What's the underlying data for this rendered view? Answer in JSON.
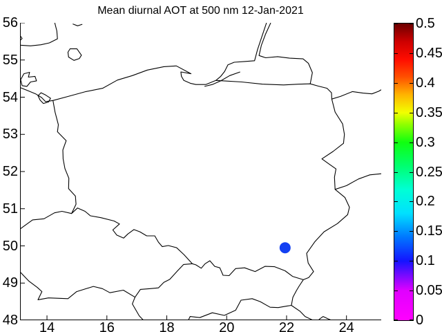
{
  "figure": {
    "title": "Mean diurnal AOT at 500 nm 12-Jan-2021",
    "background_color": "#ffffff",
    "line_color": "#000000"
  },
  "chart_data": {
    "type": "scatter",
    "title": "Mean diurnal AOT at 500 nm 12-Jan-2021",
    "xlabel": "",
    "ylabel": "",
    "grid": false,
    "x_axis": {
      "range": [
        13.1,
        25.16
      ],
      "ticks": [
        14,
        16,
        18,
        20,
        22,
        24
      ],
      "tick_labels": [
        "14",
        "16",
        "18",
        "20",
        "22",
        "24"
      ]
    },
    "y_axis": {
      "range": [
        48,
        56
      ],
      "ticks": [
        48,
        49,
        50,
        51,
        52,
        53,
        54,
        55,
        56
      ],
      "tick_labels": [
        "48",
        "49",
        "50",
        "51",
        "52",
        "53",
        "54",
        "55",
        "56"
      ]
    },
    "points": [
      {
        "lon": 21.95,
        "lat": 49.95,
        "color": "#1340f2",
        "radius_px": 8,
        "aot_value_from_colorbar": 0.1
      }
    ],
    "colorbar": {
      "min": 0,
      "max": 0.5,
      "tick_values": [
        0,
        0.05,
        0.1,
        0.15,
        0.2,
        0.25,
        0.3,
        0.35,
        0.4,
        0.45,
        0.5
      ],
      "tick_labels": [
        "0",
        "0.05",
        "0.1",
        "0.15",
        "0.2",
        "0.25",
        "0.3",
        "0.35",
        "0.4",
        "0.45",
        "0.5"
      ],
      "gradient_stops": [
        {
          "v": 0.0,
          "c": "#ff00ff"
        },
        {
          "v": 0.05,
          "c": "#e000ff"
        },
        {
          "v": 0.1,
          "c": "#1414ff"
        },
        {
          "v": 0.14,
          "c": "#0077ff"
        },
        {
          "v": 0.18,
          "c": "#00e0ff"
        },
        {
          "v": 0.22,
          "c": "#00ffd5"
        },
        {
          "v": 0.26,
          "c": "#00ff70"
        },
        {
          "v": 0.3,
          "c": "#10ff10"
        },
        {
          "v": 0.33,
          "c": "#90ff00"
        },
        {
          "v": 0.35,
          "c": "#f2ff00"
        },
        {
          "v": 0.38,
          "c": "#ffb400"
        },
        {
          "v": 0.41,
          "c": "#ff5000"
        },
        {
          "v": 0.44,
          "c": "#ff0c00"
        },
        {
          "v": 0.47,
          "c": "#cc0000"
        },
        {
          "v": 0.5,
          "c": "#6b0000"
        }
      ]
    },
    "map_outlines": [
      {
        "name": "poland",
        "closed": true,
        "points": [
          [
            14.2,
            53.91
          ],
          [
            14.75,
            54.03
          ],
          [
            15.3,
            54.15
          ],
          [
            15.86,
            54.24
          ],
          [
            16.35,
            54.46
          ],
          [
            16.85,
            54.58
          ],
          [
            17.35,
            54.73
          ],
          [
            17.9,
            54.82
          ],
          [
            18.32,
            54.84
          ],
          [
            18.81,
            54.63
          ],
          [
            18.47,
            54.68
          ],
          [
            18.49,
            54.56
          ],
          [
            18.57,
            54.45
          ],
          [
            18.8,
            54.37
          ],
          [
            18.97,
            54.34
          ],
          [
            19.3,
            54.34
          ],
          [
            19.64,
            54.45
          ],
          [
            19.9,
            54.44
          ],
          [
            20.5,
            54.41
          ],
          [
            21.2,
            54.35
          ],
          [
            21.9,
            54.33
          ],
          [
            22.4,
            54.35
          ],
          [
            22.79,
            54.36
          ],
          [
            23.05,
            54.3
          ],
          [
            23.35,
            54.24
          ],
          [
            23.5,
            54.12
          ],
          [
            23.51,
            53.95
          ],
          [
            23.62,
            53.6
          ],
          [
            23.87,
            53.28
          ],
          [
            23.93,
            53.0
          ],
          [
            23.9,
            52.76
          ],
          [
            23.55,
            52.54
          ],
          [
            23.18,
            52.34
          ],
          [
            23.42,
            52.2
          ],
          [
            23.65,
            52.07
          ],
          [
            23.6,
            51.85
          ],
          [
            23.62,
            51.52
          ],
          [
            23.95,
            51.3
          ],
          [
            24.1,
            51.04
          ],
          [
            24.04,
            50.84
          ],
          [
            23.7,
            50.6
          ],
          [
            23.25,
            50.38
          ],
          [
            22.95,
            50.12
          ],
          [
            22.67,
            49.8
          ],
          [
            22.72,
            49.54
          ],
          [
            22.9,
            49.31
          ],
          [
            22.74,
            49.15
          ],
          [
            22.56,
            49.09
          ],
          [
            22.2,
            49.18
          ],
          [
            21.95,
            49.33
          ],
          [
            21.6,
            49.44
          ],
          [
            21.28,
            49.45
          ],
          [
            20.95,
            49.31
          ],
          [
            20.6,
            49.41
          ],
          [
            20.3,
            49.39
          ],
          [
            20.08,
            49.2
          ],
          [
            19.88,
            49.21
          ],
          [
            19.77,
            49.41
          ],
          [
            19.6,
            49.45
          ],
          [
            19.44,
            49.6
          ],
          [
            19.28,
            49.52
          ],
          [
            19.15,
            49.4
          ],
          [
            18.97,
            49.49
          ],
          [
            18.85,
            49.52
          ],
          [
            18.58,
            49.76
          ],
          [
            18.33,
            49.95
          ],
          [
            18.05,
            50.01
          ],
          [
            17.85,
            49.98
          ],
          [
            17.72,
            50.1
          ],
          [
            17.6,
            50.27
          ],
          [
            17.33,
            50.27
          ],
          [
            17.1,
            50.38
          ],
          [
            16.9,
            50.44
          ],
          [
            16.7,
            50.32
          ],
          [
            16.56,
            50.21
          ],
          [
            16.33,
            50.29
          ],
          [
            16.2,
            50.43
          ],
          [
            16.42,
            50.59
          ],
          [
            16.24,
            50.67
          ],
          [
            15.8,
            50.76
          ],
          [
            15.45,
            50.81
          ],
          [
            15.27,
            50.93
          ],
          [
            15.02,
            51.02
          ],
          [
            14.82,
            50.87
          ],
          [
            14.97,
            51.12
          ],
          [
            14.95,
            51.34
          ],
          [
            14.72,
            51.54
          ],
          [
            14.73,
            51.82
          ],
          [
            14.6,
            52.08
          ],
          [
            14.54,
            52.34
          ],
          [
            14.53,
            52.58
          ],
          [
            14.64,
            52.83
          ],
          [
            14.35,
            53.07
          ],
          [
            14.38,
            53.26
          ],
          [
            14.27,
            53.6
          ]
        ]
      },
      {
        "name": "germany-czech-border",
        "closed": false,
        "points": [
          [
            14.82,
            50.87
          ],
          [
            14.5,
            50.93
          ],
          [
            14.25,
            50.89
          ],
          [
            13.9,
            50.73
          ],
          [
            13.52,
            50.7
          ],
          [
            13.18,
            50.5
          ],
          [
            13.08,
            50.44
          ]
        ]
      },
      {
        "name": "czech-austria-slovakia-border",
        "closed": false,
        "points": [
          [
            13.08,
            49.32
          ],
          [
            13.4,
            49.05
          ],
          [
            13.68,
            48.88
          ],
          [
            13.83,
            48.77
          ],
          [
            13.7,
            48.55
          ],
          [
            14.05,
            48.6
          ],
          [
            14.7,
            48.58
          ],
          [
            14.99,
            48.77
          ],
          [
            15.55,
            48.91
          ],
          [
            15.85,
            48.85
          ],
          [
            16.1,
            48.74
          ],
          [
            16.55,
            48.81
          ],
          [
            16.94,
            48.62
          ],
          [
            16.85,
            48.44
          ],
          [
            17.08,
            48.12
          ],
          [
            17.22,
            48.0
          ]
        ]
      },
      {
        "name": "czech-slovakia-border",
        "closed": false,
        "points": [
          [
            16.94,
            48.62
          ],
          [
            17.12,
            48.83
          ],
          [
            17.45,
            48.85
          ],
          [
            17.72,
            48.87
          ],
          [
            17.9,
            49.02
          ],
          [
            18.1,
            49.1
          ],
          [
            18.36,
            49.33
          ],
          [
            18.56,
            49.5
          ],
          [
            18.85,
            49.52
          ]
        ]
      },
      {
        "name": "slovakia-hungary-ukraine-border",
        "closed": false,
        "points": [
          [
            18.72,
            48.0
          ],
          [
            18.78,
            48.1
          ],
          [
            19.1,
            48.07
          ],
          [
            19.52,
            48.2
          ],
          [
            19.92,
            48.13
          ],
          [
            20.3,
            48.27
          ],
          [
            20.48,
            48.54
          ],
          [
            20.85,
            48.58
          ],
          [
            21.12,
            48.5
          ],
          [
            21.45,
            48.35
          ],
          [
            21.72,
            48.34
          ],
          [
            22.0,
            48.38
          ],
          [
            22.16,
            48.4
          ],
          [
            22.21,
            48.62
          ],
          [
            22.33,
            48.8
          ],
          [
            22.42,
            48.92
          ],
          [
            22.56,
            49.09
          ]
        ]
      },
      {
        "name": "hungary-ukraine-border",
        "closed": false,
        "points": [
          [
            22.16,
            48.4
          ],
          [
            22.45,
            48.24
          ],
          [
            22.62,
            48.1
          ],
          [
            22.88,
            48.0
          ]
        ]
      },
      {
        "name": "ukraine-bottom-squiggle",
        "closed": false,
        "points": [
          [
            23.08,
            48.02
          ],
          [
            23.22,
            48.1
          ],
          [
            23.38,
            48.04
          ],
          [
            23.5,
            48.0
          ]
        ]
      },
      {
        "name": "lithuania-belarus-border",
        "closed": false,
        "points": [
          [
            23.51,
            53.95
          ],
          [
            23.8,
            54.02
          ],
          [
            24.2,
            54.15
          ],
          [
            24.55,
            54.11
          ],
          [
            24.85,
            54.09
          ],
          [
            25.08,
            54.16
          ],
          [
            25.16,
            54.2
          ]
        ]
      },
      {
        "name": "belarus-ukraine-border",
        "closed": false,
        "points": [
          [
            23.62,
            51.52
          ],
          [
            24.0,
            51.62
          ],
          [
            24.4,
            51.8
          ],
          [
            24.78,
            51.91
          ],
          [
            25.16,
            51.94
          ]
        ]
      },
      {
        "name": "curonian-lagoon-russia-lithuania-border",
        "closed": false,
        "points": [
          [
            21.47,
            56.0
          ],
          [
            21.3,
            55.7
          ],
          [
            21.16,
            55.4
          ],
          [
            21.08,
            55.12
          ],
          [
            21.3,
            55.06
          ],
          [
            21.7,
            55.09
          ],
          [
            22.1,
            55.05
          ],
          [
            22.55,
            55.03
          ],
          [
            22.73,
            54.91
          ],
          [
            22.86,
            54.66
          ],
          [
            22.79,
            54.36
          ]
        ]
      },
      {
        "name": "curonian-spit-sambia-coast",
        "closed": false,
        "points": [
          [
            21.33,
            56.0
          ],
          [
            21.17,
            55.62
          ],
          [
            21.03,
            55.28
          ],
          [
            20.93,
            54.98
          ],
          [
            20.6,
            54.96
          ],
          [
            20.25,
            54.94
          ],
          [
            20.04,
            54.87
          ],
          [
            19.93,
            54.69
          ],
          [
            19.8,
            54.56
          ],
          [
            19.64,
            54.45
          ]
        ]
      },
      {
        "name": "vistula-lagoon-shore",
        "closed": false,
        "points": [
          [
            20.45,
            54.68
          ],
          [
            20.1,
            54.58
          ],
          [
            19.8,
            54.44
          ],
          [
            19.52,
            54.34
          ],
          [
            19.26,
            54.29
          ]
        ]
      },
      {
        "name": "sweden-coast",
        "closed": false,
        "points": [
          [
            14.26,
            56.0
          ],
          [
            14.33,
            55.78
          ],
          [
            14.35,
            55.57
          ],
          [
            14.08,
            55.46
          ],
          [
            13.8,
            55.41
          ],
          [
            13.45,
            55.38
          ],
          [
            13.1,
            55.4
          ]
        ]
      },
      {
        "name": "sweden-coast-fragment",
        "closed": false,
        "points": [
          [
            14.86,
            55.97
          ],
          [
            15.02,
            55.92
          ],
          [
            15.18,
            55.96
          ]
        ]
      },
      {
        "name": "sweden-west-hook",
        "closed": false,
        "points": [
          [
            13.1,
            55.66
          ],
          [
            13.17,
            55.58
          ],
          [
            13.1,
            55.52
          ]
        ]
      },
      {
        "name": "bornholm-island",
        "closed": true,
        "points": [
          [
            14.7,
            55.21
          ],
          [
            14.77,
            55.3
          ],
          [
            15.0,
            55.3
          ],
          [
            15.15,
            55.13
          ],
          [
            15.08,
            55.04
          ],
          [
            14.9,
            54.99
          ],
          [
            14.72,
            55.08
          ]
        ]
      },
      {
        "name": "german-baltic-coast",
        "closed": false,
        "points": [
          [
            13.1,
            54.26
          ],
          [
            13.38,
            54.17
          ],
          [
            13.62,
            54.09
          ],
          [
            13.82,
            53.99
          ],
          [
            13.95,
            53.88
          ],
          [
            14.2,
            53.91
          ]
        ]
      },
      {
        "name": "ruegen-island",
        "closed": true,
        "points": [
          [
            13.12,
            54.47
          ],
          [
            13.23,
            54.63
          ],
          [
            13.42,
            54.67
          ],
          [
            13.38,
            54.54
          ],
          [
            13.6,
            54.56
          ],
          [
            13.65,
            54.44
          ],
          [
            13.45,
            54.41
          ],
          [
            13.33,
            54.29
          ],
          [
            13.17,
            54.31
          ]
        ]
      },
      {
        "name": "usedom-szczecin-lagoon",
        "closed": true,
        "points": [
          [
            13.8,
            54.12
          ],
          [
            13.95,
            54.06
          ],
          [
            14.12,
            53.97
          ],
          [
            14.05,
            53.87
          ],
          [
            13.88,
            53.83
          ],
          [
            13.77,
            53.92
          ],
          [
            13.7,
            54.04
          ]
        ]
      }
    ]
  }
}
